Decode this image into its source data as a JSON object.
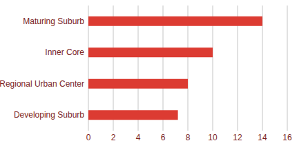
{
  "chart_data": {
    "type": "bar",
    "orientation": "horizontal",
    "categories": [
      "Maturing Suburb",
      "Inner Core",
      "Regional Urban Center",
      "Developing Suburb"
    ],
    "values": [
      14,
      10,
      8,
      7.2
    ],
    "color": "#dc3b32",
    "xlim": [
      0,
      16
    ],
    "xticks": [
      0,
      2,
      4,
      6,
      8,
      10,
      12,
      14,
      16
    ],
    "grid": true
  }
}
